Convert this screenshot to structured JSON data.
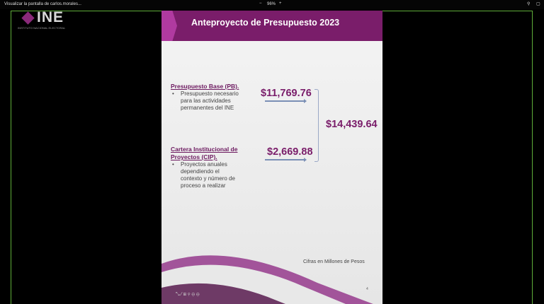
{
  "window": {
    "title": "Visualizar la pantalla de carlos.morales...",
    "zoom": "96%",
    "zoom_out": "−",
    "zoom_in": "+",
    "search_icon": "search-icon",
    "settings_icon": "window-icon"
  },
  "logo": {
    "name": "INE",
    "subtitle": "INSTITUTO NACIONAL ELECTORAL"
  },
  "slide": {
    "title": "Anteproyecto de Presupuesto 2023",
    "pb_title": "Presupuesto Base (PB).",
    "pb_bullet": [
      "Presupuesto necesario",
      "para las actividades",
      "permanentes del INE"
    ],
    "pb_amount": "$11,769.76",
    "cip_title": [
      "Cartera Institucional de",
      "Proyectos (CIP)."
    ],
    "cip_bullet": [
      "Proyectos anuales",
      "dependiendo el",
      "contexto y número de",
      "proceso a realizar"
    ],
    "cip_amount": "$2,669.88",
    "total": "$14,439.64",
    "note": "Cifras en Millones de Pesos",
    "page": "4",
    "bullet": "•"
  },
  "colors": {
    "accent": "#7a1d6a",
    "frame": "#5fae3a"
  }
}
